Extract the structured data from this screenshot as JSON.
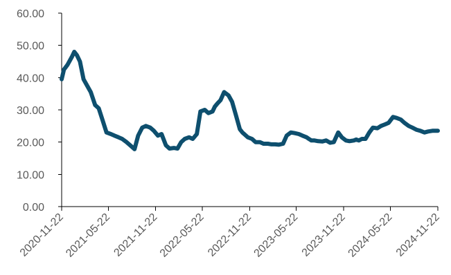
{
  "chart_data": {
    "type": "line",
    "title": "",
    "xlabel": "",
    "ylabel": "",
    "ylim": [
      0,
      60
    ],
    "y_ticks": [
      "0.00",
      "10.00",
      "20.00",
      "30.00",
      "40.00",
      "50.00",
      "60.00"
    ],
    "x_ticks": [
      "2020-11-22",
      "2021-05-22",
      "2021-11-22",
      "2022-05-22",
      "2022-11-22",
      "2023-05-22",
      "2023-11-22",
      "2024-05-22",
      "2024-11-22"
    ],
    "xlim": [
      "2020-11-22",
      "2024-11-22"
    ],
    "grid": false,
    "legend": "none",
    "series": [
      {
        "color": "#0e4f6e",
        "x": [
          "2020-11-22",
          "2020-12-01",
          "2020-12-15",
          "2021-01-01",
          "2021-01-10",
          "2021-01-20",
          "2021-02-01",
          "2021-02-15",
          "2021-03-01",
          "2021-03-15",
          "2021-04-01",
          "2021-04-15",
          "2021-05-01",
          "2021-05-15",
          "2021-06-01",
          "2021-06-15",
          "2021-07-01",
          "2021-07-15",
          "2021-08-01",
          "2021-08-15",
          "2021-09-01",
          "2021-09-15",
          "2021-10-01",
          "2021-10-15",
          "2021-11-01",
          "2021-11-15",
          "2021-12-01",
          "2021-12-15",
          "2022-01-01",
          "2022-01-15",
          "2022-02-01",
          "2022-02-15",
          "2022-03-01",
          "2022-03-15",
          "2022-04-01",
          "2022-04-15",
          "2022-05-01",
          "2022-05-15",
          "2022-06-01",
          "2022-06-15",
          "2022-07-01",
          "2022-07-10",
          "2022-07-20",
          "2022-08-01",
          "2022-08-15",
          "2022-09-01",
          "2022-09-15",
          "2022-10-01",
          "2022-10-15",
          "2022-10-25",
          "2022-11-01",
          "2022-11-15",
          "2022-12-01",
          "2022-12-15",
          "2023-01-01",
          "2023-01-15",
          "2023-02-01",
          "2023-02-15",
          "2023-03-01",
          "2023-03-15",
          "2023-04-01",
          "2023-04-15",
          "2023-05-01",
          "2023-05-15",
          "2023-06-01",
          "2023-06-15",
          "2023-07-01",
          "2023-07-10",
          "2023-07-20",
          "2023-08-01",
          "2023-08-15",
          "2023-09-01",
          "2023-09-15",
          "2023-10-01",
          "2023-10-15",
          "2023-11-01",
          "2023-11-15",
          "2023-12-01",
          "2023-12-15",
          "2024-01-01",
          "2024-01-10",
          "2024-01-20",
          "2024-02-01",
          "2024-02-15",
          "2024-03-01",
          "2024-03-15",
          "2024-04-01",
          "2024-04-15",
          "2024-05-01",
          "2024-05-15",
          "2024-06-01",
          "2024-06-15",
          "2024-07-01",
          "2024-07-15",
          "2024-08-01",
          "2024-08-15",
          "2024-09-01",
          "2024-09-15",
          "2024-10-01",
          "2024-10-15",
          "2024-11-01",
          "2024-11-22"
        ],
        "y": [
          39.5,
          42.5,
          44.0,
          46.5,
          48.0,
          47.0,
          45.0,
          39.5,
          37.5,
          35.5,
          31.5,
          30.5,
          26.5,
          23.0,
          22.5,
          22.0,
          21.5,
          21.0,
          20.0,
          19.0,
          17.8,
          22.0,
          24.5,
          25.0,
          24.5,
          23.5,
          22.0,
          22.5,
          19.0,
          18.0,
          18.2,
          18.0,
          20.0,
          21.0,
          21.5,
          21.0,
          22.5,
          29.5,
          30.0,
          29.0,
          29.5,
          31.0,
          32.0,
          33.0,
          35.5,
          34.5,
          32.5,
          28.0,
          24.0,
          23.0,
          22.5,
          21.5,
          21.0,
          20.0,
          20.0,
          19.5,
          19.5,
          19.3,
          19.3,
          19.2,
          19.5,
          22.0,
          23.0,
          22.8,
          22.5,
          22.0,
          21.5,
          21.0,
          20.5,
          20.5,
          20.3,
          20.2,
          20.5,
          19.8,
          20.0,
          23.0,
          21.5,
          20.5,
          20.3,
          20.5,
          20.8,
          20.5,
          21.0,
          21.0,
          23.0,
          24.5,
          24.3,
          25.0,
          25.5,
          26.0,
          27.8,
          27.5,
          27.0,
          26.0,
          25.0,
          24.5,
          23.8,
          23.5,
          23.0,
          23.3,
          23.5,
          23.5
        ]
      }
    ]
  }
}
